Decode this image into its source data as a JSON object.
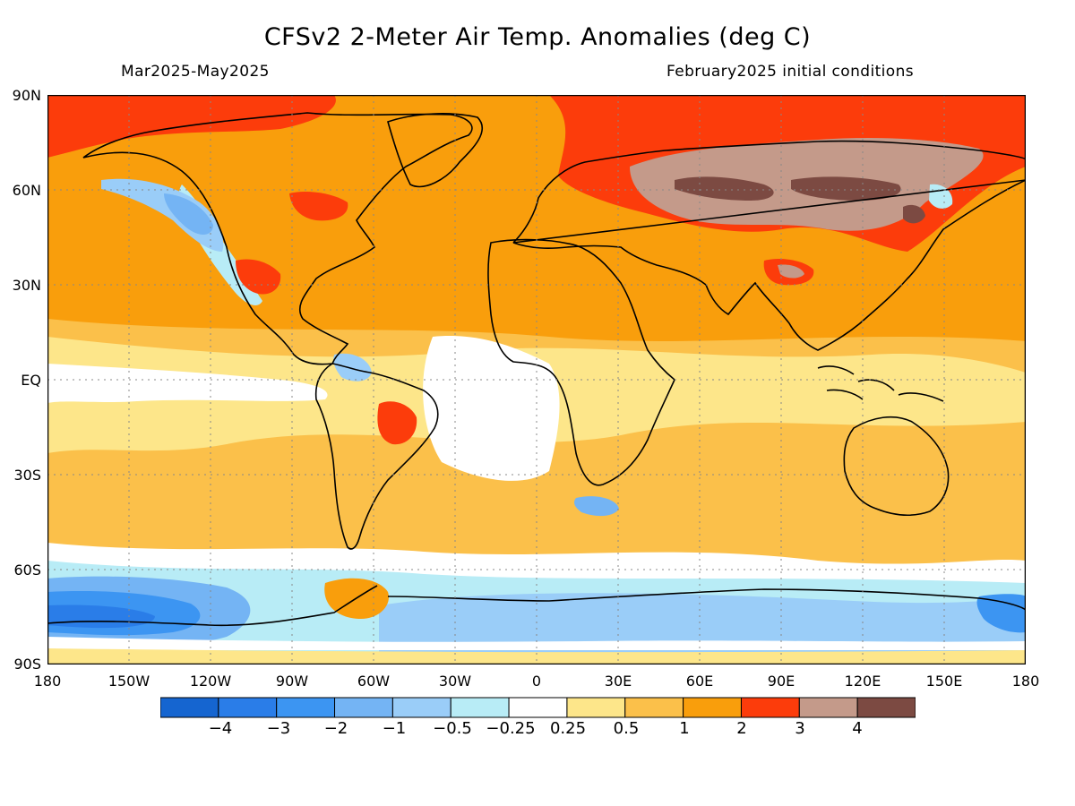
{
  "header": {
    "title": "CFSv2 2-Meter Air Temp. Anomalies (deg C)",
    "period": "Mar2025-May2025",
    "initial_conditions": "February2025 initial conditions"
  },
  "axes": {
    "lat_labels": [
      "90N",
      "60N",
      "30N",
      "EQ",
      "30S",
      "60S",
      "90S"
    ],
    "lon_labels": [
      "180",
      "150W",
      "120W",
      "90W",
      "60W",
      "30W",
      "0",
      "30E",
      "60E",
      "90E",
      "120E",
      "150E",
      "180"
    ]
  },
  "colorbar": {
    "colors": [
      "#1565d0",
      "#2a7de8",
      "#3c95f2",
      "#74b4f4",
      "#9acdf8",
      "#b8ecf6",
      "#ffffff",
      "#fde68a",
      "#fbc04a",
      "#f99e0c",
      "#fc3c0b",
      "#c49a8a",
      "#7c4a42"
    ],
    "labels": [
      "−4",
      "−3",
      "−2",
      "−1",
      "−0.5",
      "−0.25",
      "0.25",
      "0.5",
      "1",
      "2",
      "3",
      "4"
    ]
  },
  "map": {
    "colors": {
      "ocean_base": "#f99e0c",
      "warm_light": "#fbc04a",
      "warm_pale": "#fde68a",
      "neutral": "#ffffff",
      "cool_pale": "#b8ecf6",
      "cool_light": "#9acdf8",
      "cool_mid": "#74b4f4",
      "cool_strong": "#3c95f2",
      "cool_deep": "#2a7de8",
      "hot": "#fc3c0b",
      "very_hot": "#c49a8a",
      "extreme": "#7c4a42",
      "coast": "#000000",
      "grid": "#888888"
    }
  }
}
